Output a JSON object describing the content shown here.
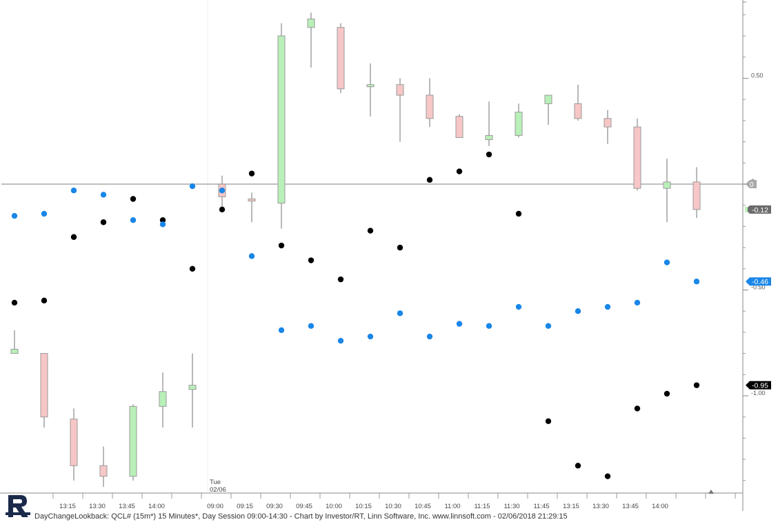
{
  "footer": {
    "caption": "DayChangeLookback: QCL# (15m*) 15 Minutes*, Day Session 09:00-14:30 - Chart by Investor/RT, Linn Software, Inc. www.linnsoft.com - 02/06/2018 21:29:15"
  },
  "colors": {
    "up_fill": "#b8f0b8",
    "down_fill": "#f7c6c6",
    "wick": "#a0a0a0",
    "black_dots": "#000000",
    "blue_dots": "#1a86e8",
    "zero_line": "#a8a8a8"
  },
  "chart_data": {
    "type": "candlestick",
    "y_axis": {
      "ylim": [
        -1.57,
        0.86
      ],
      "ticks": [
        {
          "value": 0.5,
          "label": "0.50"
        },
        {
          "value": 0,
          "label": "0"
        },
        {
          "value": -0.5,
          "label": "-0.50"
        },
        {
          "value": -1.0,
          "label": "-1.00"
        }
      ],
      "markers": [
        {
          "value": -0.12,
          "label": "-0.12",
          "series": "candles"
        },
        {
          "value": -0.46,
          "label": "-0.46",
          "series": "blue"
        },
        {
          "value": -0.95,
          "label": "-0.95",
          "series": "black"
        }
      ]
    },
    "x_axis": {
      "tick_labels": [
        "13:15",
        "13:30",
        "13:45",
        "14:00",
        "09:00",
        "09:15",
        "09:30",
        "09:45",
        "10:00",
        "10:15",
        "10:30",
        "10:45",
        "11:00",
        "11:15",
        "11:30",
        "11:45",
        "13:15",
        "13:30",
        "13:45",
        "14:00"
      ],
      "session_label": "Tue\n02/06"
    },
    "bars": [
      {
        "o": -0.8,
        "h": -0.69,
        "l": -0.8,
        "c": -0.78,
        "black": -0.56,
        "blue": -0.15
      },
      {
        "o": -0.8,
        "h": -0.8,
        "l": -1.15,
        "c": -1.1,
        "black": -0.55,
        "blue": -0.14
      },
      {
        "o": -1.11,
        "h": -1.06,
        "l": -1.4,
        "c": -1.33,
        "black": -0.25,
        "blue": -0.03
      },
      {
        "o": -1.33,
        "h": -1.24,
        "l": -1.43,
        "c": -1.38,
        "black": -0.18,
        "blue": -0.05
      },
      {
        "o": -1.38,
        "h": -1.04,
        "l": -1.4,
        "c": -1.05,
        "black": -0.07,
        "blue": -0.17
      },
      {
        "o": -1.05,
        "h": -0.89,
        "l": -1.15,
        "c": -0.98,
        "black": -0.17,
        "blue": -0.19
      },
      {
        "o": -0.97,
        "h": -0.8,
        "l": -1.15,
        "c": -0.95,
        "black": -0.4,
        "blue": -0.01
      },
      {
        "o": 0.0,
        "h": 0.04,
        "l": -0.11,
        "c": -0.06,
        "black": -0.12,
        "blue": -0.03
      },
      {
        "o": -0.07,
        "h": -0.04,
        "l": -0.18,
        "c": -0.08,
        "black": 0.05,
        "blue": -0.34
      },
      {
        "o": -0.09,
        "h": 0.76,
        "l": -0.21,
        "c": 0.7,
        "black": -0.29,
        "blue": -0.69
      },
      {
        "o": 0.74,
        "h": 0.81,
        "l": 0.55,
        "c": 0.78,
        "black": -0.36,
        "blue": -0.67
      },
      {
        "o": 0.74,
        "h": 0.76,
        "l": 0.43,
        "c": 0.45,
        "black": -0.45,
        "blue": -0.74
      },
      {
        "o": 0.46,
        "h": 0.57,
        "l": 0.32,
        "c": 0.47,
        "black": -0.22,
        "blue": -0.72
      },
      {
        "o": 0.47,
        "h": 0.5,
        "l": 0.2,
        "c": 0.42,
        "black": -0.3,
        "blue": -0.61
      },
      {
        "o": 0.42,
        "h": 0.5,
        "l": 0.27,
        "c": 0.31,
        "black": 0.02,
        "blue": -0.72
      },
      {
        "o": 0.32,
        "h": 0.33,
        "l": 0.22,
        "c": 0.22,
        "black": 0.06,
        "blue": -0.66
      },
      {
        "o": 0.21,
        "h": 0.39,
        "l": 0.18,
        "c": 0.23,
        "black": 0.14,
        "blue": -0.67
      },
      {
        "o": 0.23,
        "h": 0.38,
        "l": 0.22,
        "c": 0.34,
        "black": -0.14,
        "blue": -0.58
      },
      {
        "o": 0.38,
        "h": 0.42,
        "l": 0.28,
        "c": 0.42,
        "black": -1.12,
        "blue": -0.67
      },
      {
        "o": 0.38,
        "h": 0.47,
        "l": 0.3,
        "c": 0.31,
        "black": -1.33,
        "blue": -0.6
      },
      {
        "o": 0.31,
        "h": 0.35,
        "l": 0.19,
        "c": 0.27,
        "black": -1.38,
        "blue": -0.58
      },
      {
        "o": 0.27,
        "h": 0.31,
        "l": -0.03,
        "c": -0.02,
        "black": -1.06,
        "blue": -0.56
      },
      {
        "o": -0.02,
        "h": 0.12,
        "l": -0.18,
        "c": 0.01,
        "black": -0.99,
        "blue": -0.37
      },
      {
        "o": 0.01,
        "h": 0.08,
        "l": -0.16,
        "c": -0.12,
        "black": -0.95,
        "blue": -0.46
      }
    ]
  }
}
